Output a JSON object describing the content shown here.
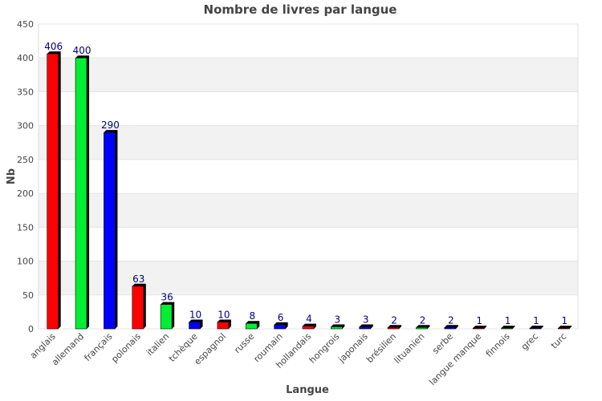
{
  "chart_data": {
    "type": "bar",
    "title": "Nombre de livres par langue",
    "xlabel": "Langue",
    "ylabel": "Nb",
    "ylim": [
      0,
      450
    ],
    "yticks": [
      0,
      50,
      100,
      150,
      200,
      250,
      300,
      350,
      400,
      450
    ],
    "grid": "horizontal-bands",
    "categories": [
      "anglais",
      "allemand",
      "français",
      "polonais",
      "italien",
      "tchèque",
      "espagnol",
      "russe",
      "roumain",
      "hollandais",
      "hongrois",
      "japonais",
      "brésilien",
      "lituanien",
      "serbe",
      "langue manque",
      "finnois",
      "grec",
      "turc"
    ],
    "values": [
      406,
      400,
      290,
      63,
      36,
      10,
      10,
      8,
      6,
      4,
      3,
      3,
      2,
      2,
      2,
      1,
      1,
      1,
      1
    ],
    "bar_colors": [
      "#ff0000",
      "#00ee33",
      "#0000ff"
    ],
    "band_color": "#f2f2f2",
    "label_color": "#000080"
  }
}
